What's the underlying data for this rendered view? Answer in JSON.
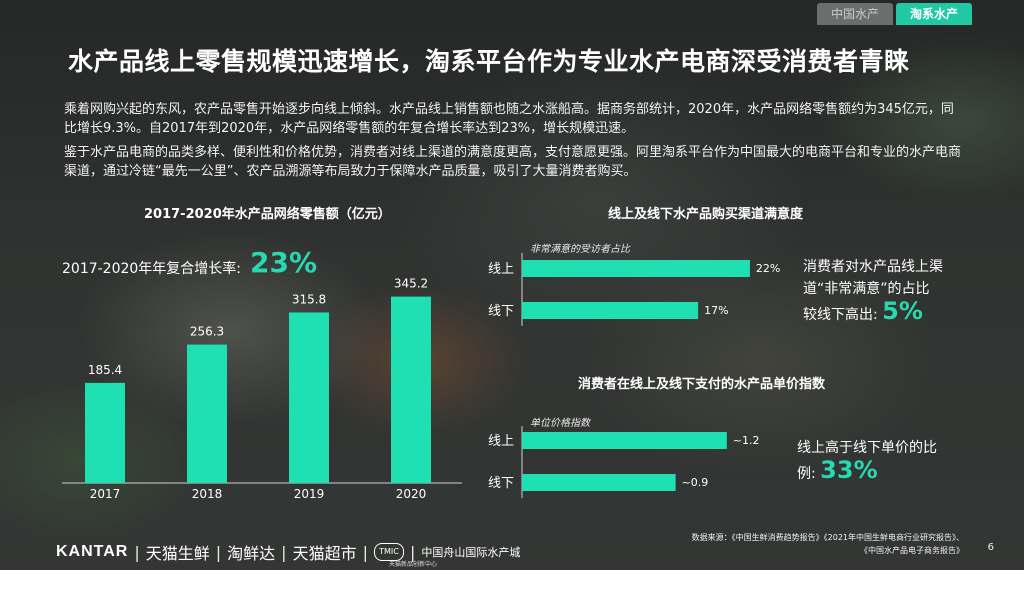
{
  "tabs": [
    {
      "label": "中国水产",
      "active": false
    },
    {
      "label": "淘系水产",
      "active": true
    }
  ],
  "title": "水产品线上零售规模迅速增长，淘系平台作为专业水产电商深受消费者青睐",
  "paragraphs": [
    "乘着网购兴起的东风，农产品零售开始逐步向线上倾斜。水产品线上销售额也随之水涨船高。据商务部统计，2020年，水产品网络零售额约为345亿元，同比增长9.3%。自2017年到2020年，水产品网络零售额的年复合增长率达到23%，增长规模迅速。",
    "鉴于水产品电商的品类多样、便利性和价格优势，消费者对线上渠道的满意度更高，支付意愿更强。阿里淘系平台作为中国最大的电商平台和专业的水产电商渠道，通过冷链“最先一公里”、农产品溯源等布局致力于保障水产品质量，吸引了大量消费者购买。"
  ],
  "accent_color": "#28d8b0",
  "bar_color": "#1fe0b2",
  "left_chart": {
    "cagr_label": "2017-2020年年复合增长率:",
    "cagr_value": "23%"
  },
  "satisfaction_note": {
    "line1": "消费者对水产品线上渠",
    "line2": "道“非常满意”的占比",
    "line3": "较线下高出:",
    "value": "5%"
  },
  "price_note": {
    "line1": "线上高于线下单价的比",
    "line2": "例:",
    "value": "33%"
  },
  "chart_data": [
    {
      "type": "bar",
      "title": "2017-2020年水产品网络零售额（亿元）",
      "categories": [
        "2017",
        "2018",
        "2019",
        "2020"
      ],
      "values": [
        185.4,
        256.3,
        315.8,
        345.2
      ],
      "value_labels": [
        "185.4",
        "256.3",
        "315.8",
        "345.2"
      ],
      "ylim": [
        0,
        400
      ]
    },
    {
      "type": "bar",
      "orientation": "horizontal",
      "title": "线上及线下水产品购买渠道满意度",
      "subtitle": "非常满意的受访者占比",
      "categories": [
        "线上",
        "线下"
      ],
      "values": [
        22,
        17
      ],
      "value_labels": [
        "22%",
        "17%"
      ],
      "xlim": [
        0,
        25
      ]
    },
    {
      "type": "bar",
      "orientation": "horizontal",
      "title": "消费者在线上及线下支付的水产品单价指数",
      "subtitle": "单位价格指数",
      "categories": [
        "线上",
        "线下"
      ],
      "values": [
        1.2,
        0.9
      ],
      "value_labels": [
        "~1.2",
        "~0.9"
      ],
      "xlim": [
        0,
        1.5
      ]
    }
  ],
  "footer": {
    "logos": [
      "KANTAR",
      "天猫生鲜",
      "淘鲜达",
      "天猫超市"
    ],
    "tmic": "TMIC",
    "tmic_sub": "天猫新品创新中心",
    "zhoushan": "中国舟山国际水产城",
    "source_line1": "数据来源：《中国生鲜消费趋势报告》《2021年中国生鲜电商行业研究报告》、",
    "source_line2": "《中国水产品电子商务报告》",
    "page": "6"
  }
}
